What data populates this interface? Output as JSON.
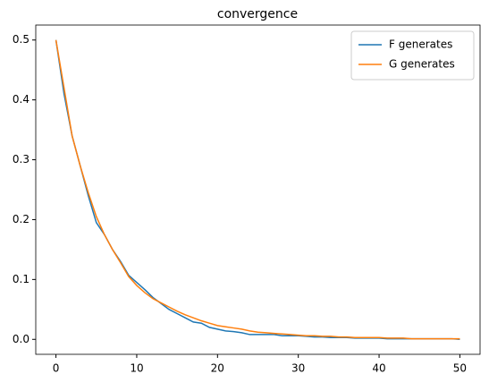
{
  "chart_data": {
    "type": "line",
    "title": "convergence",
    "x": [
      0,
      1,
      2,
      3,
      4,
      5,
      6,
      7,
      8,
      9,
      10,
      11,
      12,
      13,
      14,
      15,
      16,
      17,
      18,
      19,
      20,
      21,
      22,
      23,
      24,
      25,
      26,
      27,
      28,
      29,
      30,
      31,
      32,
      33,
      34,
      35,
      36,
      37,
      38,
      39,
      40,
      41,
      42,
      43,
      44,
      45,
      46,
      47,
      48,
      49,
      50
    ],
    "series": [
      {
        "name": "F generates",
        "color": "#1f77b4",
        "values": [
          0.5,
          0.41,
          0.34,
          0.29,
          0.24,
          0.195,
          0.175,
          0.15,
          0.13,
          0.107,
          0.095,
          0.083,
          0.07,
          0.06,
          0.05,
          0.043,
          0.036,
          0.029,
          0.027,
          0.02,
          0.017,
          0.014,
          0.013,
          0.011,
          0.008,
          0.008,
          0.008,
          0.008,
          0.006,
          0.006,
          0.006,
          0.005,
          0.004,
          0.004,
          0.003,
          0.003,
          0.003,
          0.002,
          0.002,
          0.002,
          0.002,
          0.001,
          0.001,
          0.001,
          0.001,
          0.001,
          0.001,
          0.001,
          0.001,
          0.001,
          0.0
        ]
      },
      {
        "name": "G generates",
        "color": "#ff7f0e",
        "values": [
          0.5,
          0.42,
          0.34,
          0.29,
          0.245,
          0.205,
          0.175,
          0.15,
          0.128,
          0.105,
          0.09,
          0.078,
          0.068,
          0.061,
          0.054,
          0.047,
          0.041,
          0.036,
          0.031,
          0.027,
          0.023,
          0.021,
          0.019,
          0.017,
          0.014,
          0.012,
          0.011,
          0.01,
          0.009,
          0.008,
          0.007,
          0.006,
          0.006,
          0.005,
          0.005,
          0.004,
          0.004,
          0.003,
          0.003,
          0.003,
          0.003,
          0.002,
          0.002,
          0.002,
          0.001,
          0.001,
          0.001,
          0.001,
          0.001,
          0.001,
          0.001
        ]
      }
    ],
    "xlim": [
      -2.5,
      52.5
    ],
    "xticks": [
      0,
      10,
      20,
      30,
      40,
      50
    ],
    "ylim": [
      -0.025,
      0.525
    ],
    "yticks": [
      {
        "value": 0,
        "label": "0.0"
      },
      0.1,
      0.2,
      0.3,
      0.4,
      0.5
    ],
    "legend": "upper right"
  }
}
